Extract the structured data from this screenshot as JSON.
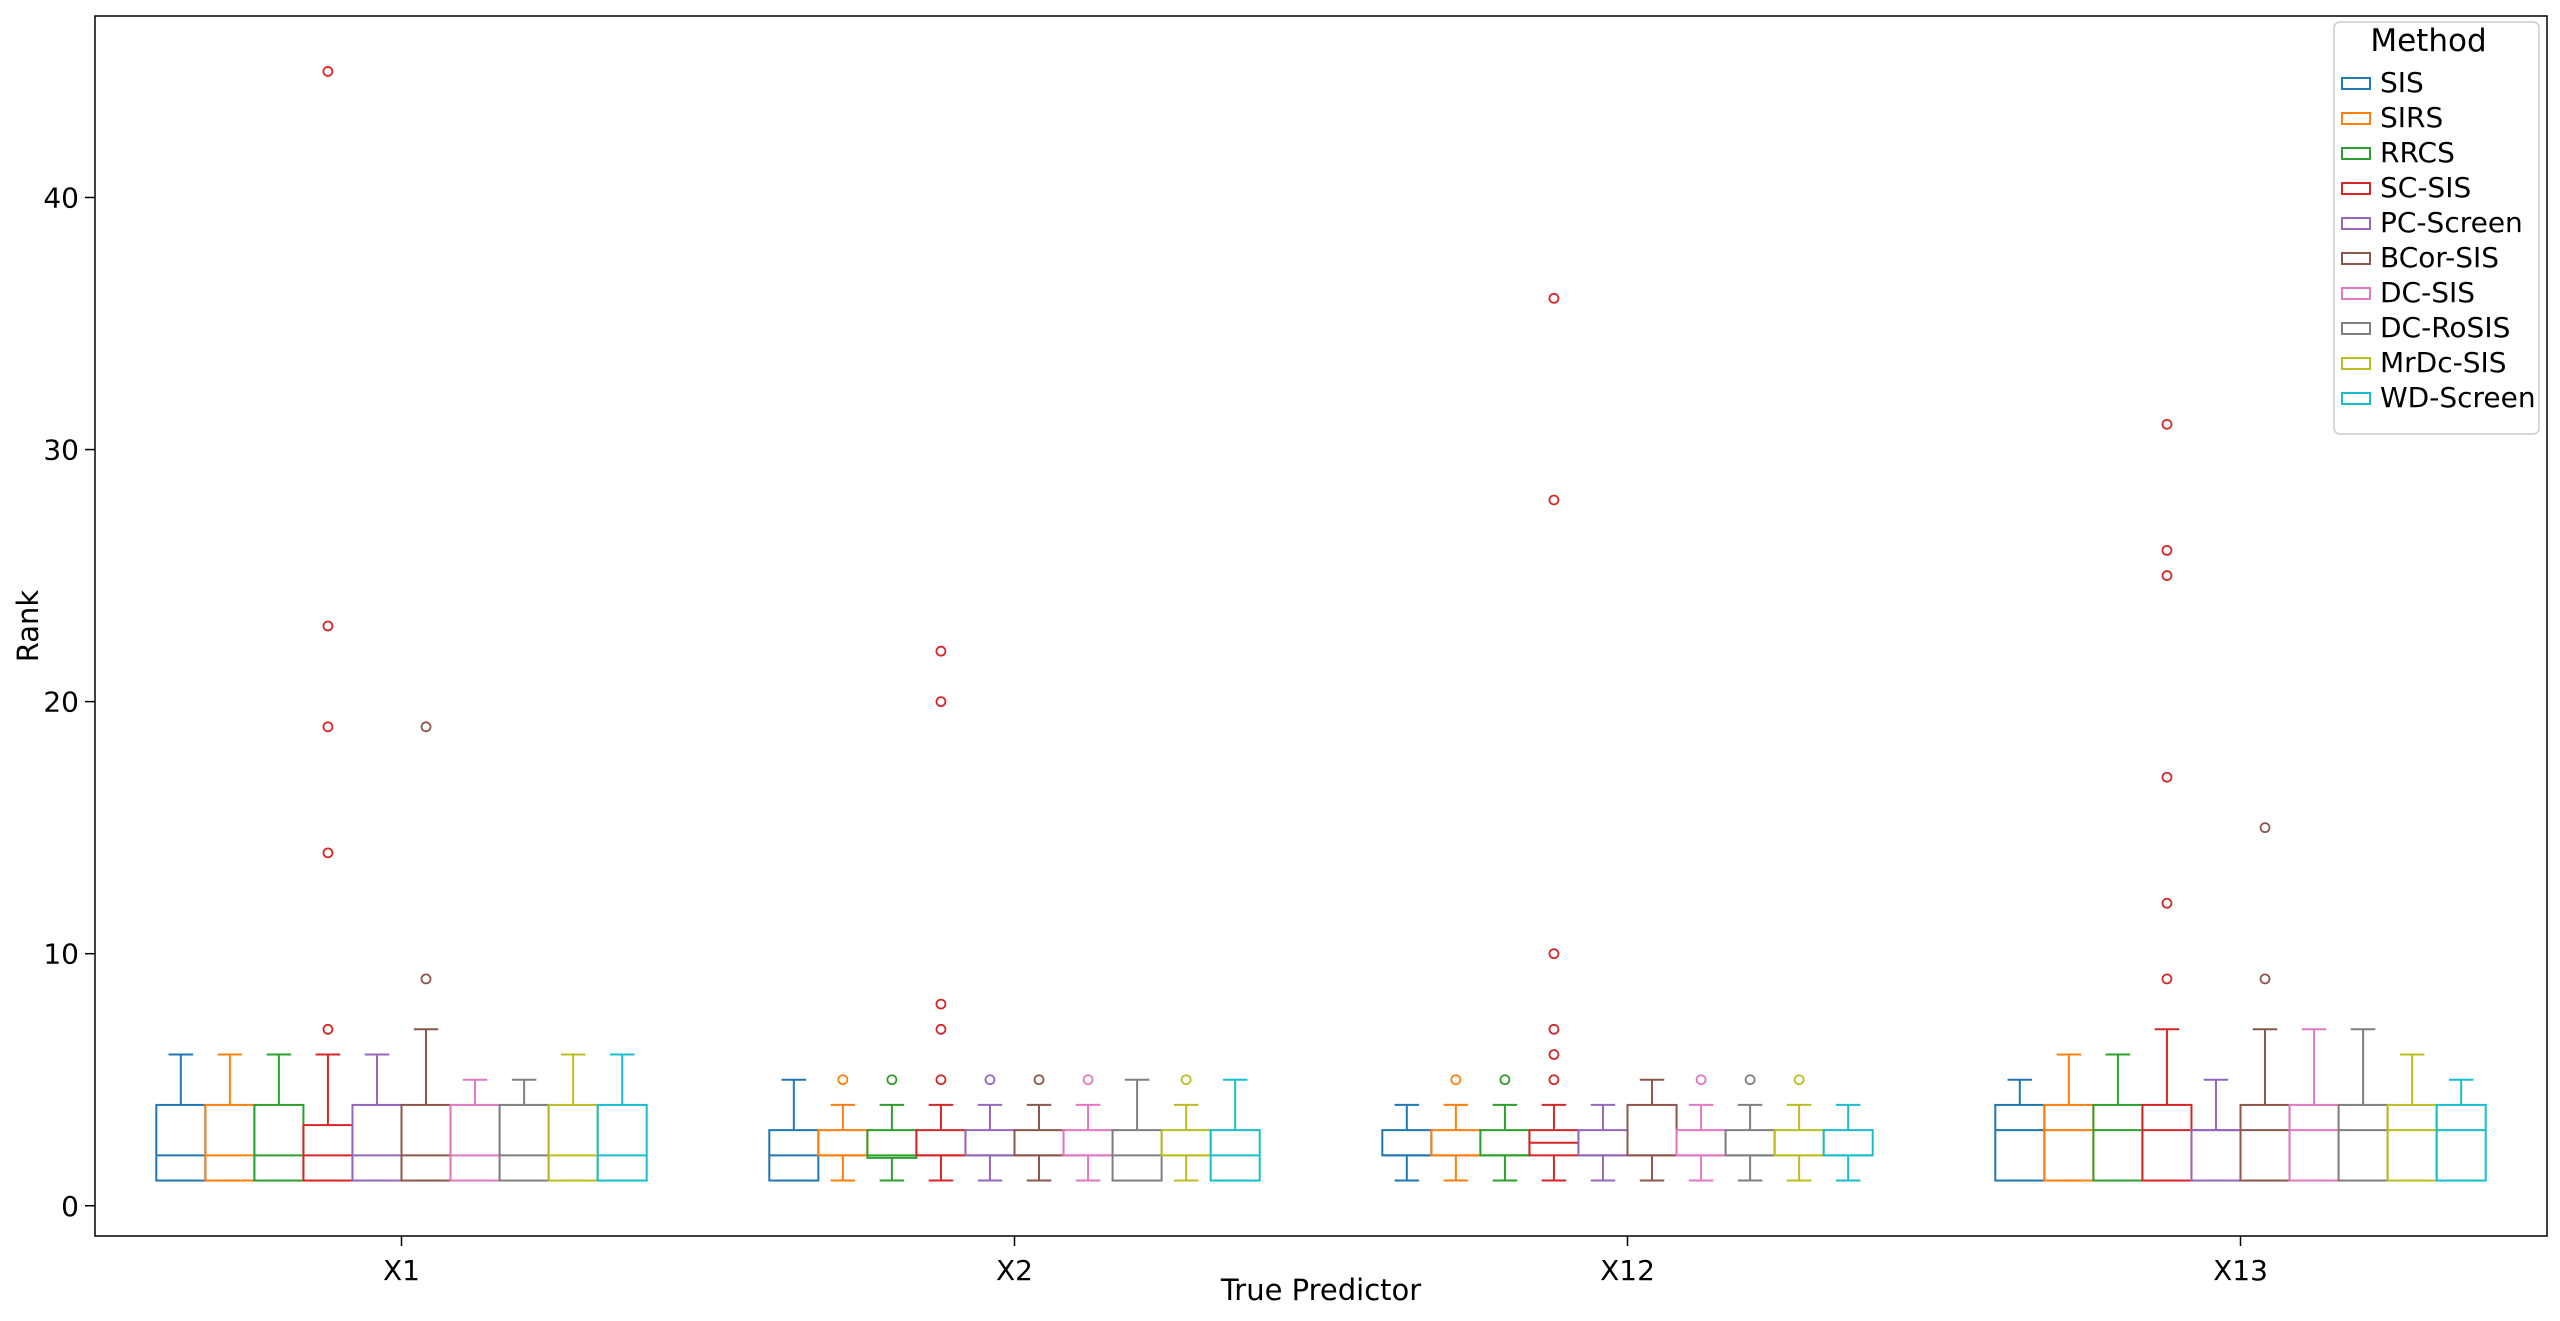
{
  "chart_data": {
    "type": "boxplot",
    "title": "",
    "xlabel": "True Predictor",
    "ylabel": "Rank",
    "categories": [
      "X1",
      "X2",
      "X12",
      "X13"
    ],
    "ylim": [
      -1.2,
      47.2
    ],
    "yticks": [
      0,
      10,
      20,
      30,
      40
    ],
    "grid": false,
    "legend": {
      "title": "Method",
      "position": "top-right"
    },
    "series": [
      {
        "name": "SIS",
        "color": "#1f77b4",
        "boxes": [
          {
            "whislo": 1,
            "q1": 1,
            "med": 2,
            "q3": 4,
            "whishi": 6,
            "fliers": []
          },
          {
            "whislo": 1,
            "q1": 1,
            "med": 2,
            "q3": 3,
            "whishi": 5,
            "fliers": []
          },
          {
            "whislo": 1,
            "q1": 2,
            "med": 2,
            "q3": 3,
            "whishi": 4,
            "fliers": []
          },
          {
            "whislo": 1,
            "q1": 1,
            "med": 3,
            "q3": 4,
            "whishi": 5,
            "fliers": []
          }
        ]
      },
      {
        "name": "SIRS",
        "color": "#ff7f0e",
        "boxes": [
          {
            "whislo": 1,
            "q1": 1,
            "med": 2,
            "q3": 4,
            "whishi": 6,
            "fliers": []
          },
          {
            "whislo": 1,
            "q1": 2,
            "med": 2,
            "q3": 3,
            "whishi": 4,
            "fliers": [
              5
            ]
          },
          {
            "whislo": 1,
            "q1": 2,
            "med": 2,
            "q3": 3,
            "whishi": 4,
            "fliers": [
              5
            ]
          },
          {
            "whislo": 1,
            "q1": 1,
            "med": 3,
            "q3": 4,
            "whishi": 6,
            "fliers": []
          }
        ]
      },
      {
        "name": "RRCS",
        "color": "#2ca02c",
        "boxes": [
          {
            "whislo": 1,
            "q1": 1,
            "med": 2,
            "q3": 4,
            "whishi": 6,
            "fliers": []
          },
          {
            "whislo": 1,
            "q1": 1.9,
            "med": 2,
            "q3": 3,
            "whishi": 4,
            "fliers": [
              5
            ]
          },
          {
            "whislo": 1,
            "q1": 2,
            "med": 2,
            "q3": 3,
            "whishi": 4,
            "fliers": [
              5
            ]
          },
          {
            "whislo": 1,
            "q1": 1,
            "med": 3,
            "q3": 4,
            "whishi": 6,
            "fliers": []
          }
        ]
      },
      {
        "name": "SC-SIS",
        "color": "#d62728",
        "boxes": [
          {
            "whislo": 1,
            "q1": 1,
            "med": 2,
            "q3": 3.2,
            "whishi": 6,
            "fliers": [
              7,
              14,
              19,
              23,
              45
            ]
          },
          {
            "whislo": 1,
            "q1": 2,
            "med": 2,
            "q3": 3,
            "whishi": 4,
            "fliers": [
              5,
              7,
              8,
              20,
              22
            ]
          },
          {
            "whislo": 1,
            "q1": 2,
            "med": 2.5,
            "q3": 3,
            "whishi": 4,
            "fliers": [
              5,
              6,
              7,
              10,
              28,
              36
            ]
          },
          {
            "whislo": 1,
            "q1": 1,
            "med": 3,
            "q3": 4,
            "whishi": 7,
            "fliers": [
              9,
              12,
              17,
              25,
              26,
              31
            ]
          }
        ]
      },
      {
        "name": "PC-Screen",
        "color": "#9467bd",
        "boxes": [
          {
            "whislo": 1,
            "q1": 1,
            "med": 2,
            "q3": 4,
            "whishi": 6,
            "fliers": []
          },
          {
            "whislo": 1,
            "q1": 2,
            "med": 2,
            "q3": 3,
            "whishi": 4,
            "fliers": [
              5
            ]
          },
          {
            "whislo": 1,
            "q1": 2,
            "med": 2,
            "q3": 3,
            "whishi": 4,
            "fliers": []
          },
          {
            "whislo": 1,
            "q1": 1,
            "med": 3,
            "q3": 3,
            "whishi": 5,
            "fliers": []
          }
        ]
      },
      {
        "name": "BCor-SIS",
        "color": "#8c564b",
        "boxes": [
          {
            "whislo": 1,
            "q1": 1,
            "med": 2,
            "q3": 4,
            "whishi": 7,
            "fliers": [
              9,
              19
            ]
          },
          {
            "whislo": 1,
            "q1": 2,
            "med": 2,
            "q3": 3,
            "whishi": 4,
            "fliers": [
              5
            ]
          },
          {
            "whislo": 1,
            "q1": 2,
            "med": 2,
            "q3": 4,
            "whishi": 5,
            "fliers": []
          },
          {
            "whislo": 1,
            "q1": 1,
            "med": 3,
            "q3": 4,
            "whishi": 7,
            "fliers": [
              9,
              15
            ]
          }
        ]
      },
      {
        "name": "DC-SIS",
        "color": "#e377c2",
        "boxes": [
          {
            "whislo": 1,
            "q1": 1,
            "med": 2,
            "q3": 4,
            "whishi": 5,
            "fliers": []
          },
          {
            "whislo": 1,
            "q1": 2,
            "med": 2,
            "q3": 3,
            "whishi": 4,
            "fliers": [
              5
            ]
          },
          {
            "whislo": 1,
            "q1": 2,
            "med": 2,
            "q3": 3,
            "whishi": 4,
            "fliers": [
              5
            ]
          },
          {
            "whislo": 1,
            "q1": 1,
            "med": 3,
            "q3": 4,
            "whishi": 7,
            "fliers": []
          }
        ]
      },
      {
        "name": "DC-RoSIS",
        "color": "#7f7f7f",
        "boxes": [
          {
            "whislo": 1,
            "q1": 1,
            "med": 2,
            "q3": 4,
            "whishi": 5,
            "fliers": []
          },
          {
            "whislo": 1,
            "q1": 1,
            "med": 2,
            "q3": 3,
            "whishi": 5,
            "fliers": []
          },
          {
            "whislo": 1,
            "q1": 2,
            "med": 2,
            "q3": 3,
            "whishi": 4,
            "fliers": [
              5
            ]
          },
          {
            "whislo": 1,
            "q1": 1,
            "med": 3,
            "q3": 4,
            "whishi": 7,
            "fliers": []
          }
        ]
      },
      {
        "name": "MrDc-SIS",
        "color": "#bcbd22",
        "boxes": [
          {
            "whislo": 1,
            "q1": 1,
            "med": 2,
            "q3": 4,
            "whishi": 6,
            "fliers": []
          },
          {
            "whislo": 1,
            "q1": 2,
            "med": 2,
            "q3": 3,
            "whishi": 4,
            "fliers": [
              5
            ]
          },
          {
            "whislo": 1,
            "q1": 2,
            "med": 2,
            "q3": 3,
            "whishi": 4,
            "fliers": [
              5
            ]
          },
          {
            "whislo": 1,
            "q1": 1,
            "med": 3,
            "q3": 4,
            "whishi": 6,
            "fliers": []
          }
        ]
      },
      {
        "name": "WD-Screen",
        "color": "#17becf",
        "boxes": [
          {
            "whislo": 1,
            "q1": 1,
            "med": 2,
            "q3": 4,
            "whishi": 6,
            "fliers": []
          },
          {
            "whislo": 1,
            "q1": 1,
            "med": 2,
            "q3": 3,
            "whishi": 5,
            "fliers": []
          },
          {
            "whislo": 1,
            "q1": 2,
            "med": 2,
            "q3": 3,
            "whishi": 4,
            "fliers": []
          },
          {
            "whislo": 1,
            "q1": 1,
            "med": 3,
            "q3": 4,
            "whishi": 5,
            "fliers": []
          }
        ]
      }
    ]
  }
}
